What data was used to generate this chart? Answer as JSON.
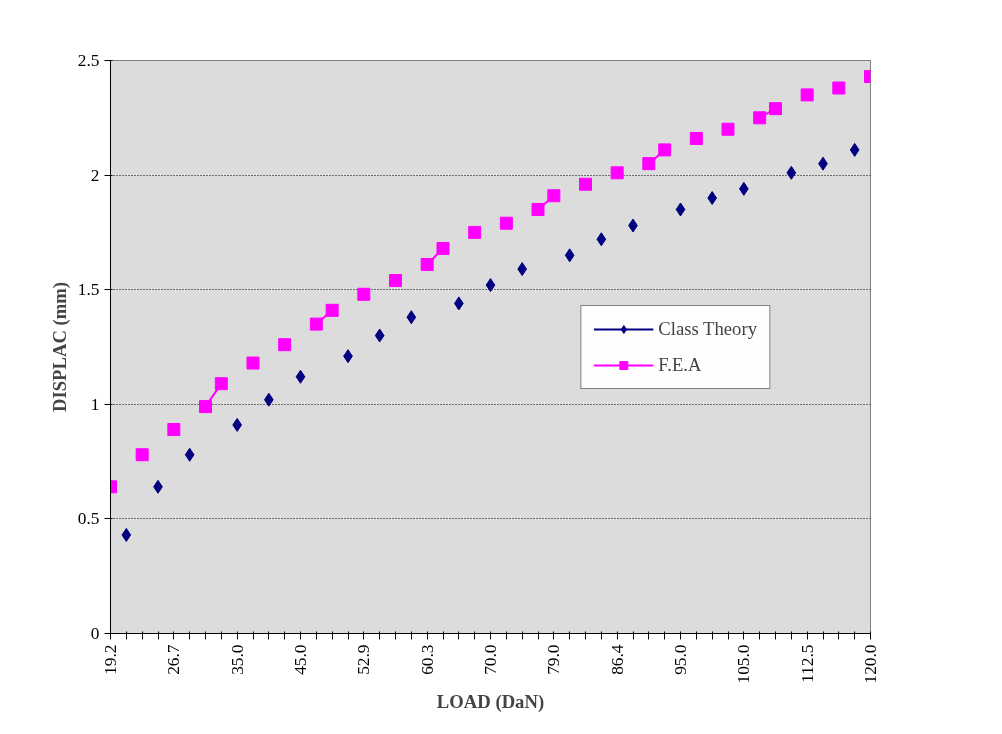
{
  "chart_data": {
    "type": "line",
    "xlabel": "LOAD (DaN)",
    "ylabel": "DISPLAC (mm)",
    "categories": [
      "19.2",
      null,
      null,
      null,
      "26.7",
      null,
      null,
      null,
      "35.0",
      null,
      null,
      null,
      "45.0",
      null,
      null,
      null,
      "52.9",
      null,
      null,
      null,
      "60.3",
      null,
      null,
      null,
      "70.0",
      null,
      null,
      null,
      "79.0",
      null,
      null,
      null,
      "86.4",
      null,
      null,
      null,
      "95.0",
      null,
      null,
      null,
      "105.0",
      null,
      null,
      null,
      "112.5",
      null,
      null,
      null,
      "120.0"
    ],
    "series": [
      {
        "name": "Class Theory",
        "color": "#000080",
        "marker": "diamond",
        "values": [
          null,
          0.43,
          null,
          0.64,
          null,
          0.78,
          null,
          null,
          0.91,
          null,
          1.02,
          null,
          1.12,
          null,
          null,
          1.21,
          null,
          1.3,
          null,
          1.38,
          null,
          null,
          1.44,
          null,
          1.52,
          null,
          1.59,
          null,
          null,
          1.65,
          null,
          1.72,
          null,
          1.78,
          null,
          null,
          1.85,
          null,
          1.9,
          null,
          1.94,
          null,
          null,
          2.01,
          null,
          2.05,
          null,
          2.11,
          null
        ]
      },
      {
        "name": "F.E.A",
        "color": "#ff00ff",
        "marker": "square",
        "values": [
          0.64,
          null,
          0.78,
          null,
          0.89,
          null,
          0.99,
          1.09,
          null,
          1.18,
          null,
          1.26,
          null,
          1.35,
          1.41,
          null,
          1.48,
          null,
          1.54,
          null,
          1.61,
          1.68,
          null,
          1.75,
          null,
          1.79,
          null,
          1.85,
          1.91,
          null,
          1.96,
          null,
          2.01,
          null,
          2.05,
          2.11,
          null,
          2.16,
          null,
          2.2,
          null,
          2.25,
          2.29,
          null,
          2.35,
          null,
          2.38,
          null,
          2.43
        ]
      }
    ],
    "ylim": [
      0,
      2.5
    ],
    "yticks": [
      0,
      0.5,
      1,
      1.5,
      2,
      2.5
    ],
    "grid": "y",
    "legend": "right",
    "line_style": "solid"
  }
}
